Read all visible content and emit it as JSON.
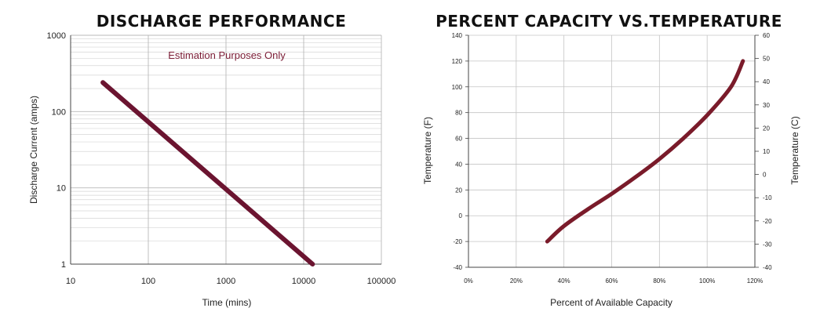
{
  "chart_data": [
    {
      "type": "line",
      "title": "DISCHARGE PERFORMANCE",
      "xlabel": "Time (mins)",
      "ylabel": "Discharge Current (amps)",
      "x_scale": "log",
      "y_scale": "log",
      "xlim": [
        10,
        100000
      ],
      "ylim": [
        1,
        1000
      ],
      "x_ticks": [
        "10",
        "100",
        "1000",
        "10000",
        "100000"
      ],
      "y_ticks": [
        "1",
        "10",
        "100",
        "1000"
      ],
      "annotation": "Estimation Purposes Only",
      "grid": true,
      "line_color": "#6b1430",
      "series": [
        {
          "x": [
            26,
            13000
          ],
          "y": [
            240,
            1
          ]
        }
      ]
    },
    {
      "type": "line",
      "title": "PERCENT CAPACITY VS.TEMPERATURE",
      "xlabel": "Percent of Available Capacity",
      "ylabel": "Temperature (F)",
      "ylabel_right": "Temperature (C)",
      "xlim": [
        0,
        120
      ],
      "ylim": [
        -40,
        140
      ],
      "ylim_right": [
        -40,
        60
      ],
      "x_ticks": [
        "0%",
        "20%",
        "40%",
        "60%",
        "80%",
        "100%",
        "120%"
      ],
      "y_ticks": [
        "-40",
        "-20",
        "0",
        "20",
        "40",
        "60",
        "80",
        "100",
        "120",
        "140"
      ],
      "y_ticks_right": [
        "-40",
        "-30",
        "-20",
        "-10",
        "0",
        "10",
        "20",
        "30",
        "40",
        "50",
        "60"
      ],
      "grid": true,
      "line_color": "#7a1b2a",
      "series": [
        {
          "x": [
            33,
            40,
            50,
            60,
            70,
            80,
            90,
            100,
            110,
            115
          ],
          "y": [
            -20,
            -8,
            5,
            17,
            30,
            44,
            60,
            78,
            100,
            120
          ]
        }
      ]
    }
  ]
}
